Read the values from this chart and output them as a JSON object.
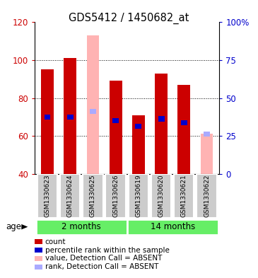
{
  "title": "GDS5412 / 1450682_at",
  "samples": [
    "GSM1330623",
    "GSM1330624",
    "GSM1330625",
    "GSM1330626",
    "GSM1330619",
    "GSM1330620",
    "GSM1330621",
    "GSM1330622"
  ],
  "groups": [
    {
      "label": "2 months",
      "indices": [
        0,
        1,
        2,
        3
      ]
    },
    {
      "label": "14 months",
      "indices": [
        4,
        5,
        6,
        7
      ]
    }
  ],
  "ylim": [
    40,
    120
  ],
  "yticks_left": [
    40,
    60,
    80,
    100,
    120
  ],
  "right_tick_positions": [
    40,
    60,
    80,
    100,
    120
  ],
  "right_tick_labels": [
    "0",
    "25",
    "50",
    "75",
    "100%"
  ],
  "left_tick_color": "#cc0000",
  "right_tick_color": "#0000cc",
  "red_bar_values": [
    95,
    101,
    null,
    89,
    71,
    93,
    87,
    null
  ],
  "red_bar_color": "#cc0000",
  "pink_bar_values": [
    null,
    null,
    113,
    null,
    null,
    null,
    null,
    61
  ],
  "pink_bar_color": "#ffb3b3",
  "blue_marker_values": [
    70,
    70,
    null,
    68,
    65,
    69,
    67,
    null
  ],
  "blue_marker_color": "#0000cc",
  "lightblue_marker_values": [
    null,
    null,
    73,
    null,
    null,
    null,
    null,
    61
  ],
  "lightblue_marker_color": "#aaaaff",
  "bar_base": 40,
  "bar_width": 0.55,
  "grid_lines": [
    60,
    80,
    100
  ],
  "sample_bg_color": "#cccccc",
  "group_age_color": "#66ee66",
  "age_label": "age",
  "legend": [
    {
      "color": "#cc0000",
      "label": "count"
    },
    {
      "color": "#0000cc",
      "label": "percentile rank within the sample"
    },
    {
      "color": "#ffb3b3",
      "label": "value, Detection Call = ABSENT"
    },
    {
      "color": "#aaaaff",
      "label": "rank, Detection Call = ABSENT"
    }
  ]
}
